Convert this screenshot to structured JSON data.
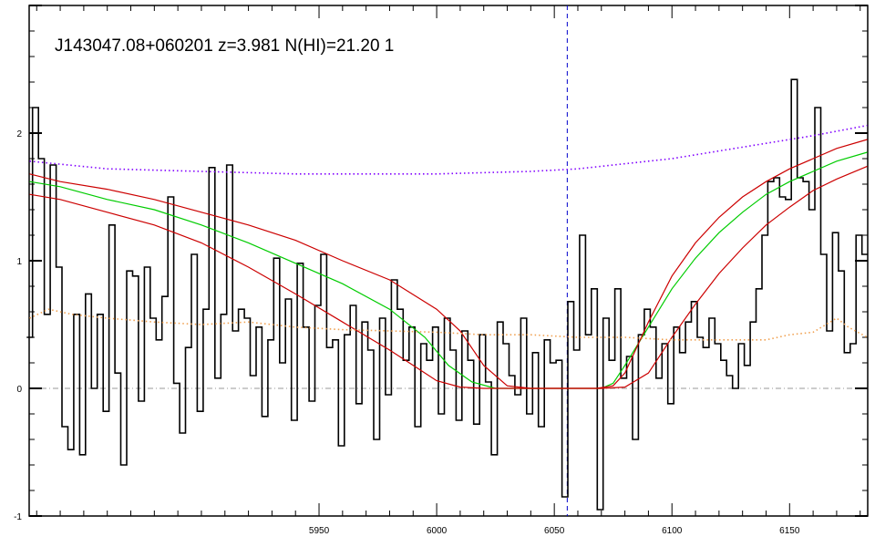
{
  "chart_data": {
    "type": "line",
    "title": "J143047.08+060201 z=3.981 N(HI)=21.20 1",
    "xlabel": "",
    "ylabel": "",
    "xlim": [
      5826.8,
      6183.2
    ],
    "ylim": [
      -1.0,
      3.0
    ],
    "x_ticks": [
      5950,
      6000,
      6050,
      6100,
      6150
    ],
    "y_ticks": [
      -1,
      0,
      1,
      2
    ],
    "grid": false,
    "legend": "none",
    "reference_line_x": 6055.5,
    "zero_line_y": 0,
    "series": [
      {
        "style": "histogram",
        "color": "#000000",
        "x": [
          5827.0,
          5829.5,
          5832.0,
          5834.5,
          5837.0,
          5839.5,
          5842.0,
          5844.5,
          5847.0,
          5849.5,
          5852.0,
          5854.5,
          5857.0,
          5859.5,
          5862.0,
          5864.5,
          5867.0,
          5869.5,
          5872.0,
          5874.5,
          5877.0,
          5879.5,
          5882.0,
          5884.5,
          5887.0,
          5889.5,
          5892.0,
          5894.5,
          5897.0,
          5899.5,
          5902.0,
          5904.5,
          5907.0,
          5909.5,
          5912.0,
          5914.5,
          5917.0,
          5919.5,
          5922.0,
          5924.5,
          5927.0,
          5929.5,
          5932.0,
          5934.5,
          5937.0,
          5939.5,
          5942.0,
          5944.5,
          5947.0,
          5949.5,
          5952.0,
          5954.5,
          5957.0,
          5959.5,
          5962.0,
          5964.5,
          5967.0,
          5969.5,
          5972.0,
          5974.5,
          5977.0,
          5979.5,
          5982.0,
          5984.5,
          5987.0,
          5989.5,
          5992.0,
          5994.5,
          5997.0,
          5999.5,
          6002.0,
          6004.5,
          6007.0,
          6009.5,
          6012.0,
          6014.5,
          6017.0,
          6019.5,
          6022.0,
          6024.5,
          6027.0,
          6029.5,
          6032.0,
          6034.5,
          6037.0,
          6039.5,
          6042.0,
          6044.5,
          6047.0,
          6049.5,
          6052.0,
          6054.5,
          6057.0,
          6059.5,
          6062.0,
          6064.5,
          6067.0,
          6069.5,
          6072.0,
          6074.5,
          6077.0,
          6079.5,
          6082.0,
          6084.5,
          6087.0,
          6089.5,
          6092.0,
          6094.5,
          6097.0,
          6099.5,
          6102.0,
          6104.5,
          6107.0,
          6109.5,
          6112.0,
          6114.5,
          6117.0,
          6119.5,
          6122.0,
          6124.5,
          6127.0,
          6129.5,
          6132.0,
          6134.5,
          6137.0,
          6139.5,
          6142.0,
          6144.5,
          6147.0,
          6149.5,
          6152.0,
          6154.5,
          6157.0,
          6159.5,
          6162.0,
          6164.5,
          6167.0,
          6169.5,
          6172.0,
          6174.5,
          6177.0,
          6179.5,
          6182.0
        ],
        "values": [
          0.4,
          2.2,
          1.8,
          0.58,
          1.75,
          0.95,
          -0.3,
          -0.48,
          0.58,
          -0.52,
          0.74,
          0.0,
          0.58,
          -0.18,
          1.28,
          0.12,
          -0.6,
          0.92,
          0.88,
          -0.1,
          0.95,
          0.55,
          0.38,
          0.72,
          1.5,
          0.04,
          -0.35,
          0.32,
          1.05,
          -0.18,
          0.62,
          1.73,
          0.08,
          0.58,
          1.75,
          0.45,
          0.62,
          0.55,
          0.1,
          0.48,
          -0.22,
          0.38,
          1.02,
          0.2,
          0.7,
          -0.25,
          0.98,
          0.48,
          -0.1,
          0.65,
          1.05,
          0.32,
          0.38,
          -0.45,
          0.42,
          0.65,
          -0.12,
          0.52,
          0.3,
          -0.4,
          0.55,
          -0.05,
          0.85,
          0.62,
          0.22,
          0.48,
          -0.3,
          0.35,
          0.22,
          0.48,
          -0.2,
          0.55,
          0.3,
          -0.25,
          0.45,
          0.22,
          -0.28,
          0.42,
          0.05,
          -0.52,
          0.52,
          0.35,
          0.1,
          -0.05,
          0.55,
          -0.2,
          0.28,
          -0.3,
          0.38,
          0.2,
          0.22,
          -0.85,
          0.68,
          0.3,
          1.2,
          0.42,
          0.78,
          -0.95,
          0.55,
          0.22,
          0.78,
          0.08,
          0.25,
          -0.4,
          0.42,
          0.62,
          0.48,
          0.08,
          0.35,
          -0.12,
          0.48,
          0.28,
          0.52,
          0.68,
          0.4,
          0.32,
          0.55,
          0.35,
          0.22,
          0.1,
          0.0,
          0.35,
          0.18,
          0.52,
          0.78,
          1.2,
          1.62,
          1.65,
          1.5,
          1.48,
          2.42,
          1.65,
          1.62,
          1.4,
          2.2,
          1.05,
          0.45,
          1.22,
          0.92,
          0.28,
          0.35,
          1.2,
          1.05
        ],
        "values_note_end": 0.85
      },
      {
        "style": "solid",
        "color": "#00cc00",
        "x": [
          5827,
          5840,
          5860,
          5880,
          5900,
          5920,
          5940,
          5960,
          5980,
          5995,
          6005,
          6015,
          6025,
          6035,
          6040,
          6050,
          6060,
          6070,
          6075,
          6080,
          6090,
          6100,
          6110,
          6120,
          6130,
          6140,
          6150,
          6160,
          6170,
          6183
        ],
        "values": [
          1.62,
          1.58,
          1.48,
          1.4,
          1.28,
          1.14,
          0.98,
          0.82,
          0.62,
          0.4,
          0.18,
          0.05,
          0.0,
          0.0,
          0.0,
          0.0,
          0.0,
          0.0,
          0.04,
          0.18,
          0.48,
          0.78,
          1.02,
          1.22,
          1.38,
          1.52,
          1.62,
          1.7,
          1.78,
          1.85
        ]
      },
      {
        "style": "solid",
        "color": "#cc0000",
        "x": [
          5827,
          5840,
          5860,
          5880,
          5900,
          5920,
          5940,
          5960,
          5980,
          6000,
          6010,
          6020,
          6030,
          6040,
          6050,
          6060,
          6068,
          6075,
          6080,
          6090,
          6100,
          6110,
          6120,
          6130,
          6140,
          6150,
          6160,
          6170,
          6183
        ],
        "values": [
          1.68,
          1.62,
          1.56,
          1.48,
          1.38,
          1.28,
          1.16,
          1.0,
          0.85,
          0.62,
          0.45,
          0.18,
          0.02,
          0.0,
          0.0,
          0.0,
          0.0,
          0.02,
          0.12,
          0.52,
          0.88,
          1.14,
          1.34,
          1.5,
          1.62,
          1.72,
          1.8,
          1.88,
          1.95
        ]
      },
      {
        "style": "solid",
        "color": "#cc0000",
        "x": [
          5827,
          5840,
          5860,
          5880,
          5900,
          5920,
          5940,
          5960,
          5980,
          5990,
          6000,
          6010,
          6020,
          6030,
          6040,
          6050,
          6060,
          6070,
          6080,
          6090,
          6100,
          6110,
          6120,
          6130,
          6140,
          6150,
          6160,
          6170,
          6183
        ],
        "values": [
          1.52,
          1.48,
          1.38,
          1.28,
          1.14,
          0.95,
          0.74,
          0.52,
          0.3,
          0.18,
          0.06,
          0.01,
          0.0,
          0.0,
          0.0,
          0.0,
          0.0,
          0.0,
          0.01,
          0.12,
          0.4,
          0.66,
          0.9,
          1.1,
          1.28,
          1.42,
          1.55,
          1.64,
          1.74
        ]
      },
      {
        "style": "dotted",
        "color": "#8000ff",
        "x": [
          5827,
          5860,
          5900,
          5940,
          5980,
          6000,
          6020,
          6040,
          6060,
          6080,
          6100,
          6120,
          6140,
          6160,
          6183
        ],
        "values": [
          1.78,
          1.72,
          1.7,
          1.68,
          1.68,
          1.68,
          1.69,
          1.7,
          1.72,
          1.76,
          1.8,
          1.86,
          1.92,
          1.98,
          2.06
        ]
      },
      {
        "style": "dotted",
        "color": "#f0a050",
        "x": [
          5827,
          5835,
          5845,
          5860,
          5880,
          5900,
          5920,
          5940,
          5960,
          5980,
          6000,
          6020,
          6040,
          6060,
          6080,
          6100,
          6120,
          6140,
          6150,
          6160,
          6170,
          6175,
          6183
        ],
        "values": [
          0.55,
          0.62,
          0.58,
          0.55,
          0.52,
          0.5,
          0.52,
          0.48,
          0.46,
          0.45,
          0.44,
          0.42,
          0.42,
          0.4,
          0.4,
          0.38,
          0.38,
          0.38,
          0.42,
          0.44,
          0.55,
          0.48,
          0.4
        ]
      }
    ]
  }
}
